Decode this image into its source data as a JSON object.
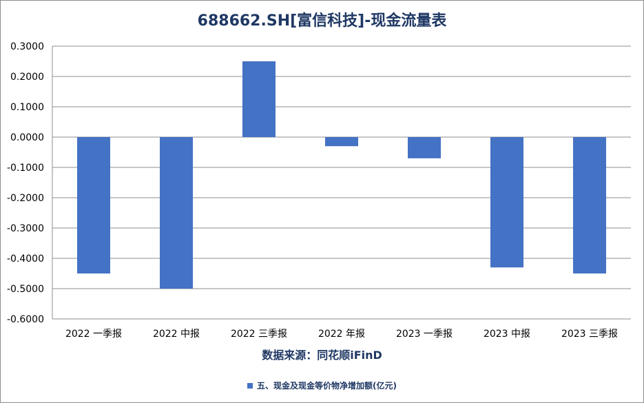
{
  "chart_data": {
    "type": "bar",
    "title": "688662.SH[富信科技]-现金流量表",
    "source": "数据来源：同花顺iFinD",
    "categories": [
      "2022 一季报",
      "2022 中报",
      "2022 三季报",
      "2022 年报",
      "2023 一季报",
      "2023 中报",
      "2023 三季报"
    ],
    "series": [
      {
        "name": "五、现金及现金等价物净增加额(亿元)",
        "color": "#4472c4",
        "values": [
          -0.45,
          -0.5,
          0.25,
          -0.03,
          -0.07,
          -0.43,
          -0.45
        ]
      }
    ],
    "yticks": [
      "0.3000",
      "0.2000",
      "0.1000",
      "0.0000",
      "-0.1000",
      "-0.2000",
      "-0.3000",
      "-0.4000",
      "-0.5000",
      "-0.6000"
    ],
    "ylim": [
      -0.6,
      0.3
    ],
    "grid": true,
    "legend_position": "bottom"
  }
}
